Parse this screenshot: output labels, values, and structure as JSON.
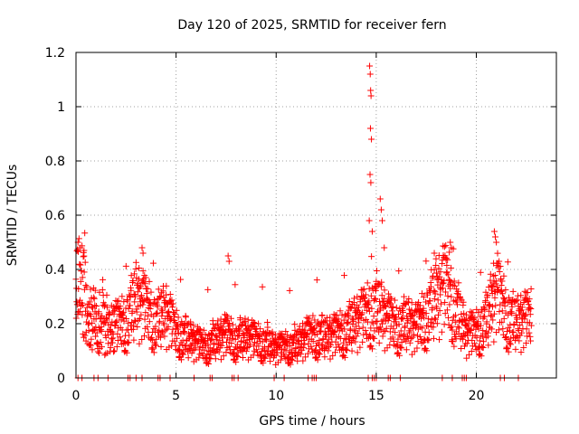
{
  "chart_data": {
    "type": "scatter",
    "title": "Day 120 of 2025, SRMTID for receiver fern",
    "xlabel": "GPS time / hours",
    "ylabel": "SRMTID / TECUs",
    "xlim": [
      0,
      24
    ],
    "ylim": [
      0,
      1.2
    ],
    "xticks": [
      0,
      5,
      10,
      15,
      20
    ],
    "yticks": [
      0,
      0.2,
      0.4,
      0.6,
      0.8,
      1,
      1.2
    ],
    "ytick_labels": [
      "0",
      "0.2",
      "0.4",
      "0.6",
      "0.8",
      "1",
      "1.2"
    ],
    "grid": true,
    "marker": "+",
    "marker_color": "#ff0000",
    "data_range_hours": [
      0,
      22.75
    ],
    "baseline_points_x": [
      0.1,
      0.3,
      0.9,
      1.1,
      1.6,
      2.6,
      2.7,
      3.0,
      3.3,
      4.1,
      4.2,
      4.7,
      5.9,
      6.7,
      6.8,
      7.8,
      7.9,
      8.1,
      9.9,
      10.4,
      11.6,
      11.8,
      11.9,
      12.0,
      14.6,
      14.8,
      14.9,
      15.0,
      15.6,
      15.7,
      16.2,
      18.3,
      18.8,
      19.3,
      19.4,
      19.5,
      21.2,
      21.4,
      22.1
    ],
    "series": [
      {
        "name": "SRMTID",
        "generated_from_profile": true,
        "profile_note": "Background level profile (hours -> TECU) with scatter; peak near 14.7 h reaching about 1.15 TECU",
        "profile": [
          [
            0.0,
            0.3
          ],
          [
            0.3,
            0.35
          ],
          [
            0.8,
            0.22
          ],
          [
            1.5,
            0.17
          ],
          [
            2.0,
            0.18
          ],
          [
            2.5,
            0.2
          ],
          [
            3.0,
            0.27
          ],
          [
            3.5,
            0.24
          ],
          [
            4.0,
            0.2
          ],
          [
            4.5,
            0.22
          ],
          [
            5.0,
            0.16
          ],
          [
            5.5,
            0.14
          ],
          [
            6.0,
            0.12
          ],
          [
            6.5,
            0.11
          ],
          [
            7.0,
            0.13
          ],
          [
            7.5,
            0.15
          ],
          [
            8.0,
            0.13
          ],
          [
            8.5,
            0.14
          ],
          [
            9.0,
            0.13
          ],
          [
            9.5,
            0.12
          ],
          [
            10.0,
            0.1
          ],
          [
            10.5,
            0.11
          ],
          [
            11.0,
            0.11
          ],
          [
            11.5,
            0.14
          ],
          [
            12.0,
            0.15
          ],
          [
            12.5,
            0.14
          ],
          [
            13.0,
            0.15
          ],
          [
            13.5,
            0.17
          ],
          [
            14.0,
            0.19
          ],
          [
            14.5,
            0.22
          ],
          [
            15.0,
            0.25
          ],
          [
            15.5,
            0.2
          ],
          [
            16.0,
            0.18
          ],
          [
            16.5,
            0.19
          ],
          [
            17.0,
            0.17
          ],
          [
            17.5,
            0.22
          ],
          [
            18.0,
            0.28
          ],
          [
            18.5,
            0.32
          ],
          [
            19.0,
            0.24
          ],
          [
            19.5,
            0.15
          ],
          [
            20.0,
            0.16
          ],
          [
            20.5,
            0.2
          ],
          [
            21.0,
            0.3
          ],
          [
            21.5,
            0.22
          ],
          [
            22.0,
            0.19
          ],
          [
            22.75,
            0.21
          ]
        ],
        "notable_points": [
          [
            14.67,
            1.15
          ],
          [
            14.7,
            1.12
          ],
          [
            14.72,
            1.06
          ],
          [
            14.74,
            1.04
          ],
          [
            14.71,
            0.92
          ],
          [
            14.76,
            0.88
          ],
          [
            14.69,
            0.75
          ],
          [
            14.73,
            0.72
          ],
          [
            14.65,
            0.58
          ],
          [
            14.8,
            0.54
          ],
          [
            15.2,
            0.66
          ],
          [
            15.25,
            0.62
          ],
          [
            15.3,
            0.58
          ],
          [
            15.4,
            0.48
          ],
          [
            20.9,
            0.54
          ],
          [
            20.95,
            0.52
          ],
          [
            21.0,
            0.5
          ],
          [
            0.1,
            0.5
          ],
          [
            0.2,
            0.48
          ],
          [
            0.4,
            0.47
          ],
          [
            3.3,
            0.48
          ],
          [
            3.35,
            0.46
          ],
          [
            7.6,
            0.45
          ],
          [
            7.65,
            0.43
          ],
          [
            18.7,
            0.5
          ],
          [
            18.75,
            0.48
          ],
          [
            17.9,
            0.46
          ]
        ]
      }
    ]
  }
}
